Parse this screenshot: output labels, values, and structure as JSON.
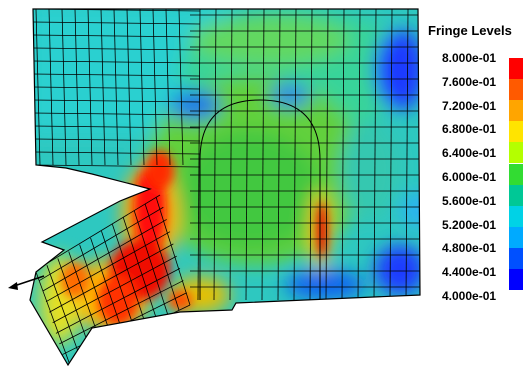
{
  "legend": {
    "title": "Fringe Levels",
    "labels": [
      "8.000e-01",
      "7.600e-01",
      "7.200e-01",
      "6.800e-01",
      "6.400e-01",
      "6.000e-01",
      "5.600e-01",
      "5.200e-01",
      "4.800e-01",
      "4.400e-01",
      "4.000e-01"
    ],
    "colors": [
      "#ff0000",
      "#ff5a00",
      "#ffa500",
      "#ffe400",
      "#b4ff00",
      "#32dc32",
      "#00c896",
      "#00d2e6",
      "#00aaff",
      "#0050ff",
      "#0000ff"
    ]
  },
  "colors": {
    "background": "#ffffff",
    "mesh_line": "#000000",
    "base_fill": "#46c8a0"
  },
  "icons": [
    "force-arrow-icon"
  ]
}
